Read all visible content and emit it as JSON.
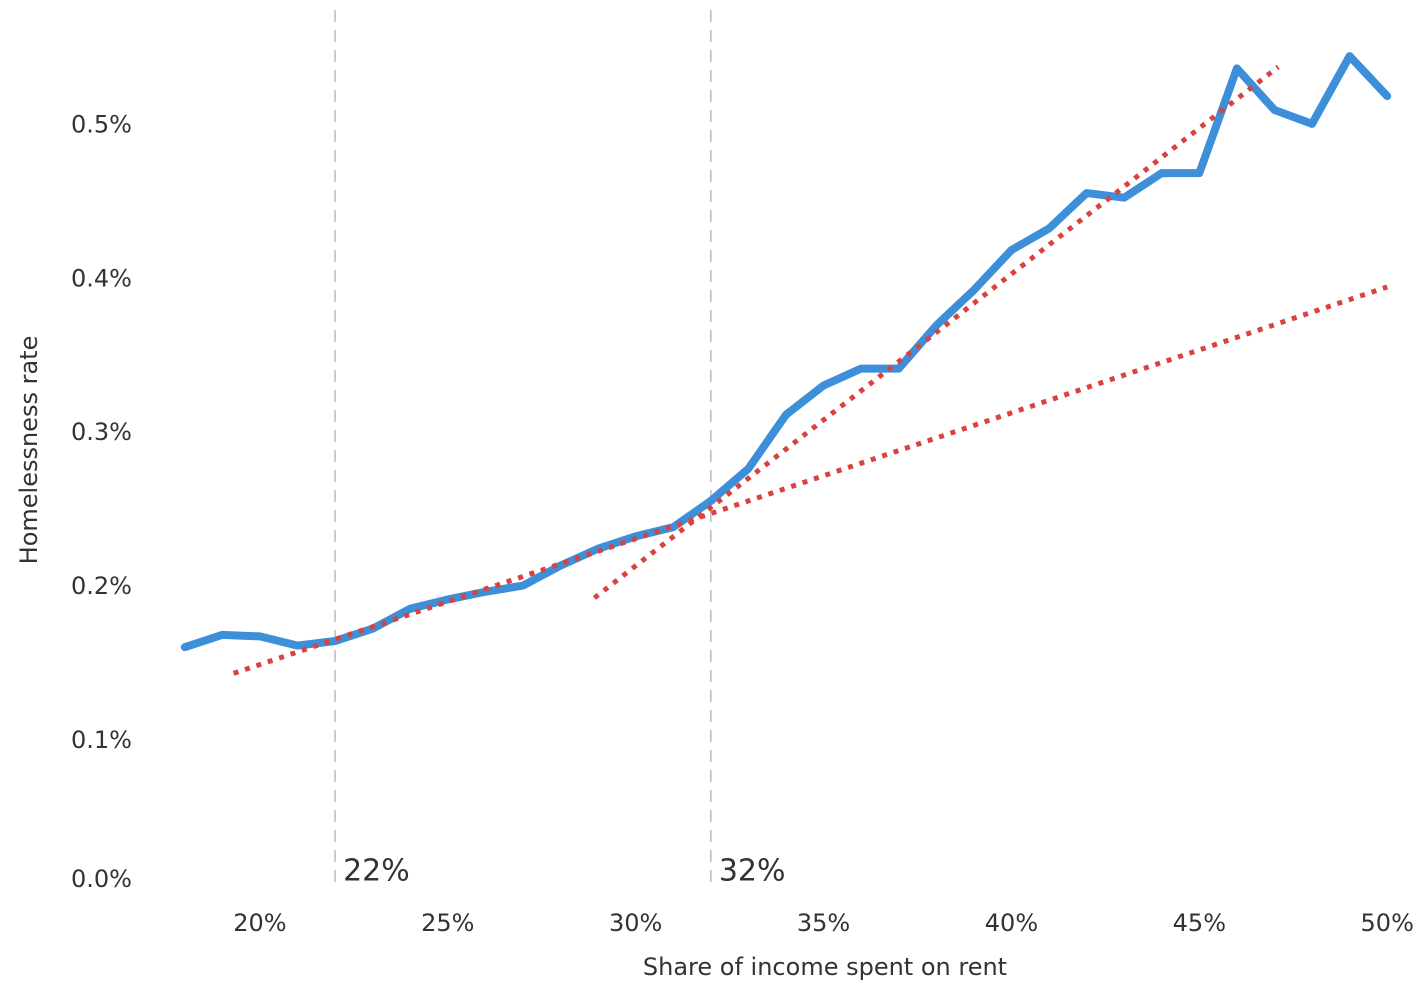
{
  "chart_data": {
    "type": "line",
    "x_label": "Share of income spent on rent",
    "y_label": "Homelessness rate",
    "xlim": [
      17.5,
      50.5
    ],
    "ylim": [
      0,
      0.56
    ],
    "xticks": [
      {
        "value": 20,
        "label": "20%"
      },
      {
        "value": 25,
        "label": "25%"
      },
      {
        "value": 30,
        "label": "30%"
      },
      {
        "value": 35,
        "label": "35%"
      },
      {
        "value": 40,
        "label": "40%"
      },
      {
        "value": 45,
        "label": "45%"
      },
      {
        "value": 50,
        "label": "50%"
      }
    ],
    "yticks": [
      {
        "value": 0,
        "label": "0.0%"
      },
      {
        "value": 0.1,
        "label": "0.1%"
      },
      {
        "value": 0.2,
        "label": "0.2%"
      },
      {
        "value": 0.3,
        "label": "0.3%"
      },
      {
        "value": 0.4,
        "label": "0.4%"
      },
      {
        "value": 0.5,
        "label": "0.5%"
      }
    ],
    "series": [
      {
        "color": "#3d8fd9",
        "style": "solid",
        "x": [
          18,
          19,
          20,
          21,
          22,
          23,
          24,
          25,
          26,
          27,
          28,
          29,
          30,
          31,
          32,
          33,
          34,
          35,
          36,
          37,
          38,
          39,
          40,
          41,
          42,
          43,
          44,
          45,
          46,
          47,
          48,
          49,
          50
        ],
        "values": [
          0.161,
          0.169,
          0.168,
          0.162,
          0.165,
          0.173,
          0.186,
          0.192,
          0.197,
          0.201,
          0.214,
          0.225,
          0.233,
          0.239,
          0.256,
          0.277,
          0.312,
          0.331,
          0.342,
          0.342,
          0.37,
          0.393,
          0.419,
          0.433,
          0.456,
          0.453,
          0.469,
          0.469,
          0.537,
          0.51,
          0.501,
          0.545,
          0.519
        ]
      },
      {
        "color": "#d9423f",
        "style": "dotted",
        "x": [
          19.3,
          50
        ],
        "values": [
          0.144,
          0.395
        ]
      },
      {
        "color": "#d9423f",
        "style": "dotted",
        "x": [
          28.9,
          47.1
        ],
        "values": [
          0.193,
          0.538
        ]
      }
    ],
    "annotations": [
      {
        "x": 22,
        "label": "22%"
      },
      {
        "x": 32,
        "label": "32%"
      }
    ]
  }
}
